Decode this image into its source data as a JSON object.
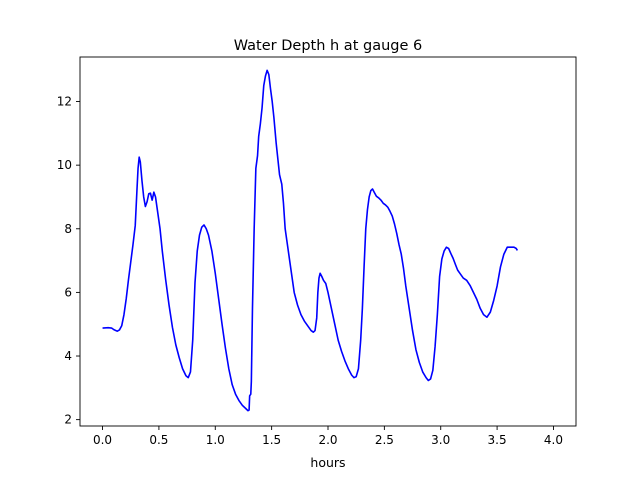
{
  "chart_data": {
    "type": "line",
    "title": "Water Depth h at gauge 6",
    "xlabel": "hours",
    "ylabel": "",
    "xlim": [
      -0.2,
      4.2
    ],
    "ylim": [
      1.8,
      13.4
    ],
    "xticks": [
      0.0,
      0.5,
      1.0,
      1.5,
      2.0,
      2.5,
      3.0,
      3.5,
      4.0
    ],
    "xtick_labels": [
      "0.0",
      "0.5",
      "1.0",
      "1.5",
      "2.0",
      "2.5",
      "3.0",
      "3.5",
      "4.0"
    ],
    "yticks": [
      2,
      4,
      6,
      8,
      10,
      12
    ],
    "ytick_labels": [
      "2",
      "4",
      "6",
      "8",
      "10",
      "12"
    ],
    "grid": false,
    "legend": "none",
    "series": [
      {
        "color": "#0000ff",
        "points": [
          [
            0.0,
            4.88
          ],
          [
            0.05,
            4.89
          ],
          [
            0.08,
            4.88
          ],
          [
            0.1,
            4.83
          ],
          [
            0.13,
            4.78
          ],
          [
            0.15,
            4.82
          ],
          [
            0.17,
            4.95
          ],
          [
            0.19,
            5.3
          ],
          [
            0.21,
            5.8
          ],
          [
            0.23,
            6.4
          ],
          [
            0.25,
            6.95
          ],
          [
            0.27,
            7.5
          ],
          [
            0.29,
            8.1
          ],
          [
            0.305,
            9.2
          ],
          [
            0.315,
            9.9
          ],
          [
            0.325,
            10.25
          ],
          [
            0.335,
            10.1
          ],
          [
            0.35,
            9.5
          ],
          [
            0.365,
            9.0
          ],
          [
            0.38,
            8.7
          ],
          [
            0.395,
            8.85
          ],
          [
            0.41,
            9.1
          ],
          [
            0.425,
            9.12
          ],
          [
            0.44,
            8.9
          ],
          [
            0.455,
            9.15
          ],
          [
            0.47,
            9.0
          ],
          [
            0.49,
            8.5
          ],
          [
            0.51,
            8.0
          ],
          [
            0.53,
            7.3
          ],
          [
            0.56,
            6.4
          ],
          [
            0.59,
            5.6
          ],
          [
            0.62,
            4.9
          ],
          [
            0.65,
            4.35
          ],
          [
            0.68,
            3.95
          ],
          [
            0.71,
            3.6
          ],
          [
            0.74,
            3.38
          ],
          [
            0.76,
            3.32
          ],
          [
            0.78,
            3.5
          ],
          [
            0.8,
            4.5
          ],
          [
            0.82,
            6.3
          ],
          [
            0.84,
            7.3
          ],
          [
            0.86,
            7.8
          ],
          [
            0.88,
            8.05
          ],
          [
            0.9,
            8.12
          ],
          [
            0.92,
            8.0
          ],
          [
            0.94,
            7.8
          ],
          [
            0.97,
            7.3
          ],
          [
            1.0,
            6.6
          ],
          [
            1.03,
            5.8
          ],
          [
            1.06,
            5.0
          ],
          [
            1.09,
            4.25
          ],
          [
            1.12,
            3.6
          ],
          [
            1.15,
            3.1
          ],
          [
            1.18,
            2.8
          ],
          [
            1.21,
            2.6
          ],
          [
            1.24,
            2.45
          ],
          [
            1.27,
            2.35
          ],
          [
            1.29,
            2.28
          ],
          [
            1.3,
            2.3
          ],
          [
            1.305,
            2.75
          ],
          [
            1.315,
            2.8
          ],
          [
            1.32,
            3.2
          ],
          [
            1.33,
            5.5
          ],
          [
            1.345,
            8.0
          ],
          [
            1.36,
            9.9
          ],
          [
            1.375,
            10.3
          ],
          [
            1.385,
            10.9
          ],
          [
            1.4,
            11.3
          ],
          [
            1.415,
            11.8
          ],
          [
            1.43,
            12.5
          ],
          [
            1.445,
            12.8
          ],
          [
            1.46,
            12.98
          ],
          [
            1.475,
            12.85
          ],
          [
            1.49,
            12.4
          ],
          [
            1.505,
            12.0
          ],
          [
            1.52,
            11.5
          ],
          [
            1.54,
            10.7
          ],
          [
            1.555,
            10.2
          ],
          [
            1.57,
            9.7
          ],
          [
            1.59,
            9.4
          ],
          [
            1.605,
            8.8
          ],
          [
            1.62,
            8.0
          ],
          [
            1.64,
            7.5
          ],
          [
            1.66,
            7.0
          ],
          [
            1.68,
            6.5
          ],
          [
            1.7,
            6.0
          ],
          [
            1.73,
            5.6
          ],
          [
            1.76,
            5.3
          ],
          [
            1.79,
            5.1
          ],
          [
            1.82,
            4.95
          ],
          [
            1.85,
            4.8
          ],
          [
            1.87,
            4.75
          ],
          [
            1.885,
            4.8
          ],
          [
            1.9,
            5.2
          ],
          [
            1.91,
            6.0
          ],
          [
            1.92,
            6.45
          ],
          [
            1.93,
            6.6
          ],
          [
            1.945,
            6.5
          ],
          [
            1.96,
            6.38
          ],
          [
            1.98,
            6.28
          ],
          [
            2.0,
            6.0
          ],
          [
            2.03,
            5.5
          ],
          [
            2.06,
            5.0
          ],
          [
            2.09,
            4.5
          ],
          [
            2.12,
            4.15
          ],
          [
            2.15,
            3.85
          ],
          [
            2.18,
            3.6
          ],
          [
            2.21,
            3.4
          ],
          [
            2.23,
            3.32
          ],
          [
            2.25,
            3.35
          ],
          [
            2.27,
            3.6
          ],
          [
            2.29,
            4.5
          ],
          [
            2.305,
            5.5
          ],
          [
            2.32,
            6.8
          ],
          [
            2.335,
            8.0
          ],
          [
            2.35,
            8.6
          ],
          [
            2.365,
            9.0
          ],
          [
            2.38,
            9.2
          ],
          [
            2.395,
            9.25
          ],
          [
            2.41,
            9.15
          ],
          [
            2.43,
            9.02
          ],
          [
            2.45,
            8.97
          ],
          [
            2.47,
            8.9
          ],
          [
            2.49,
            8.8
          ],
          [
            2.51,
            8.75
          ],
          [
            2.53,
            8.68
          ],
          [
            2.55,
            8.55
          ],
          [
            2.57,
            8.4
          ],
          [
            2.59,
            8.15
          ],
          [
            2.61,
            7.85
          ],
          [
            2.63,
            7.5
          ],
          [
            2.65,
            7.2
          ],
          [
            2.67,
            6.75
          ],
          [
            2.69,
            6.2
          ],
          [
            2.72,
            5.5
          ],
          [
            2.75,
            4.8
          ],
          [
            2.78,
            4.2
          ],
          [
            2.81,
            3.8
          ],
          [
            2.84,
            3.5
          ],
          [
            2.87,
            3.32
          ],
          [
            2.89,
            3.23
          ],
          [
            2.91,
            3.28
          ],
          [
            2.93,
            3.55
          ],
          [
            2.95,
            4.3
          ],
          [
            2.97,
            5.3
          ],
          [
            2.99,
            6.5
          ],
          [
            3.01,
            7.05
          ],
          [
            3.03,
            7.3
          ],
          [
            3.05,
            7.42
          ],
          [
            3.07,
            7.38
          ],
          [
            3.09,
            7.22
          ],
          [
            3.11,
            7.07
          ],
          [
            3.13,
            6.88
          ],
          [
            3.15,
            6.7
          ],
          [
            3.17,
            6.6
          ],
          [
            3.2,
            6.45
          ],
          [
            3.23,
            6.38
          ],
          [
            3.26,
            6.22
          ],
          [
            3.29,
            6.0
          ],
          [
            3.32,
            5.78
          ],
          [
            3.35,
            5.5
          ],
          [
            3.38,
            5.3
          ],
          [
            3.41,
            5.22
          ],
          [
            3.44,
            5.38
          ],
          [
            3.47,
            5.75
          ],
          [
            3.5,
            6.2
          ],
          [
            3.53,
            6.8
          ],
          [
            3.56,
            7.2
          ],
          [
            3.59,
            7.42
          ],
          [
            3.62,
            7.42
          ],
          [
            3.65,
            7.42
          ],
          [
            3.67,
            7.38
          ],
          [
            3.68,
            7.32
          ]
        ]
      }
    ]
  }
}
